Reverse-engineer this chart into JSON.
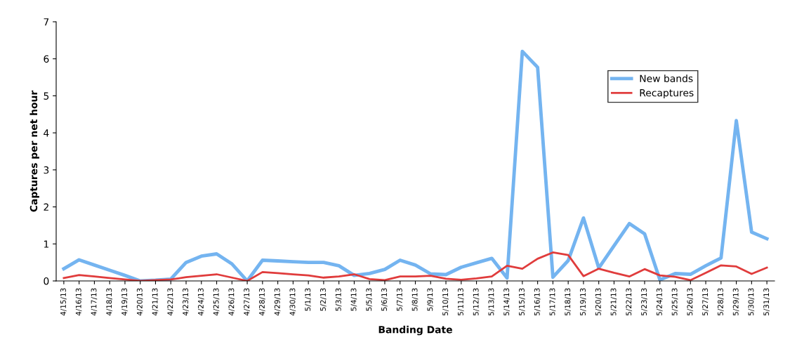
{
  "chart_data": {
    "type": "line",
    "xlabel": "Banding Date",
    "ylabel": "Captures per net hour",
    "categories": [
      "4/15/13",
      "4/16/13",
      "4/17/13",
      "4/18/13",
      "4/19/13",
      "4/20/13",
      "4/21/13",
      "4/22/13",
      "4/23/13",
      "4/24/13",
      "4/25/13",
      "4/26/13",
      "4/27/13",
      "4/28/13",
      "4/29/13",
      "4/30/13",
      "5/1/13",
      "5/2/13",
      "5/3/13",
      "5/4/13",
      "5/5/13",
      "5/6/13",
      "5/7/13",
      "5/8/13",
      "5/9/13",
      "5/10/13",
      "5/11/13",
      "5/12/13",
      "5/13/13",
      "5/14/13",
      "5/15/13",
      "5/16/13",
      "5/17/13",
      "5/18/13",
      "5/19/13",
      "5/20/13",
      "5/21/13",
      "5/22/13",
      "5/23/13",
      "5/24/13",
      "5/25/13",
      "5/26/13",
      "5/27/13",
      "5/28/13",
      "5/29/13",
      "5/30/13",
      "5/31/13"
    ],
    "series": [
      {
        "name": "New bands",
        "color": "#74b4f0",
        "values": [
          0.33,
          0.57,
          0.43,
          0.29,
          0.15,
          0.0,
          0.02,
          0.05,
          0.5,
          0.67,
          0.73,
          0.46,
          0.0,
          0.56,
          0.54,
          0.52,
          0.5,
          0.5,
          0.41,
          0.15,
          0.2,
          0.31,
          0.56,
          0.43,
          0.19,
          0.17,
          0.37,
          0.49,
          0.61,
          0.08,
          6.2,
          5.77,
          0.1,
          0.55,
          1.7,
          0.35,
          0.95,
          1.55,
          1.27,
          0.03,
          0.2,
          0.18,
          0.41,
          0.62,
          4.33,
          1.32,
          1.14
        ]
      },
      {
        "name": "Recaptures",
        "color": "#e03c3c",
        "values": [
          0.08,
          0.16,
          0.12,
          0.08,
          0.04,
          0.0,
          0.02,
          0.04,
          0.1,
          0.14,
          0.18,
          0.09,
          0.0,
          0.24,
          0.21,
          0.18,
          0.15,
          0.09,
          0.12,
          0.18,
          0.05,
          0.02,
          0.12,
          0.12,
          0.14,
          0.06,
          0.03,
          0.07,
          0.12,
          0.41,
          0.33,
          0.6,
          0.77,
          0.7,
          0.13,
          0.33,
          0.22,
          0.12,
          0.32,
          0.15,
          0.11,
          0.02,
          0.22,
          0.42,
          0.39,
          0.19,
          0.36
        ]
      }
    ],
    "ylim": [
      0,
      7
    ],
    "yticks": [
      0,
      1,
      2,
      3,
      4,
      5,
      6,
      7
    ],
    "grid": false,
    "legend": "top right",
    "marker": "none",
    "line_style": "solid"
  }
}
